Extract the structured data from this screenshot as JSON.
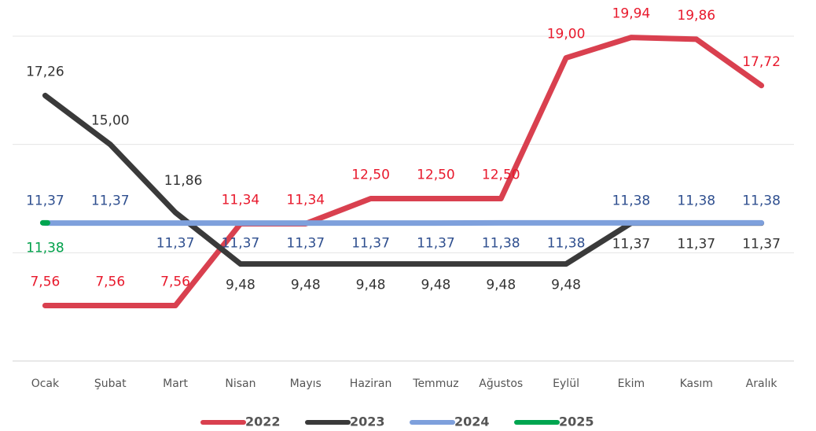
{
  "chart_data": {
    "type": "line",
    "categories": [
      "Ocak",
      "Şubat",
      "Mart",
      "Nisan",
      "Mayıs",
      "Haziran",
      "Temmuz",
      "Ağustos",
      "Eylül",
      "Ekim",
      "Kasım",
      "Aralık"
    ],
    "series": [
      {
        "name": "2022",
        "color": "#d9404f",
        "label_color": "#e8192c",
        "values": [
          7.56,
          7.56,
          7.56,
          11.34,
          11.34,
          12.5,
          12.5,
          12.5,
          19.0,
          19.94,
          19.86,
          17.72
        ],
        "value_labels": [
          "7,56",
          "7,56",
          "7,56",
          "11,34",
          "11,34",
          "12,50",
          "12,50",
          "12,50",
          "19,00",
          "19,94",
          "19,86",
          "17,72"
        ]
      },
      {
        "name": "2023",
        "color": "#3a3a3a",
        "label_color": "#333333",
        "values": [
          17.26,
          15.0,
          11.86,
          9.48,
          9.48,
          9.48,
          9.48,
          9.48,
          9.48,
          11.37,
          11.37,
          11.37
        ],
        "value_labels": [
          "17,26",
          "15,00",
          "11,86",
          "9,48",
          "9,48",
          "9,48",
          "9,48",
          "9,48",
          "9,48",
          "11,37",
          "11,37",
          "11,37"
        ]
      },
      {
        "name": "2024",
        "color": "#7ea0dc",
        "label_color": "#2f4f8f",
        "values": [
          11.37,
          11.37,
          11.37,
          11.37,
          11.37,
          11.37,
          11.37,
          11.38,
          11.38,
          11.38,
          11.38,
          11.38
        ],
        "value_labels": [
          "11,37",
          "11,37",
          "11,37",
          "11,37",
          "11,37",
          "11,37",
          "11,37",
          "11,38",
          "11,38",
          "11,38",
          "11,38",
          "11,38"
        ]
      },
      {
        "name": "2025",
        "color": "#00a550",
        "label_color": "#00a04a",
        "values": [
          11.38,
          null,
          null,
          null,
          null,
          null,
          null,
          null,
          null,
          null,
          null,
          null
        ],
        "value_labels": [
          "11,38",
          null,
          null,
          null,
          null,
          null,
          null,
          null,
          null,
          null,
          null,
          null
        ]
      }
    ],
    "ylim": [
      5,
      20
    ],
    "yticks": [
      5,
      10,
      15,
      20
    ],
    "grid": true,
    "legend": "bottom"
  }
}
